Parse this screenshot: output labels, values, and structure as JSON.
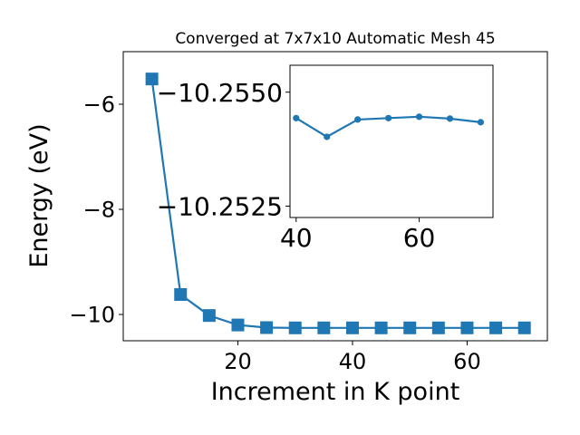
{
  "chart_data": [
    {
      "type": "line",
      "title": "Converged at 7x7x10 Automatic Mesh 45",
      "xlabel": "Increment in K point",
      "ylabel": "Energy (eV)",
      "xlim": [
        0,
        74
      ],
      "ylim": [
        -10.5,
        -5.0
      ],
      "xticks": [
        20,
        40,
        60
      ],
      "yticks": [
        -6,
        -8,
        -10
      ],
      "xtick_labels": [
        "20",
        "40",
        "60"
      ],
      "ytick_labels": [
        "−6",
        "−8",
        "−10"
      ],
      "marker": "square",
      "color": "#1f77b4",
      "series": [
        {
          "x": [
            5,
            10,
            15,
            20,
            25,
            30,
            35,
            40,
            45,
            50,
            55,
            60,
            65,
            70
          ],
          "y": [
            -5.52,
            -9.62,
            -10.02,
            -10.2,
            -10.25,
            -10.255,
            -10.255,
            -10.255,
            -10.255,
            -10.255,
            -10.255,
            -10.255,
            -10.255,
            -10.255
          ]
        }
      ]
    },
    {
      "type": "line",
      "title": "",
      "xlabel": "",
      "ylabel": "",
      "xlim": [
        39,
        72
      ],
      "ylim": [
        -10.25225,
        -10.25559
      ],
      "xticks": [
        40,
        60
      ],
      "yticks": [
        -10.255,
        -10.2525
      ],
      "xtick_labels": [
        "40",
        "60"
      ],
      "ytick_labels": [
        "−10.2550",
        "−10.2525"
      ],
      "marker": "circle",
      "color": "#1f77b4",
      "series": [
        {
          "x": [
            40,
            45,
            50,
            55,
            60,
            65,
            70
          ],
          "y": [
            -10.25443,
            -10.25402,
            -10.2544,
            -10.25443,
            -10.25446,
            -10.25442,
            -10.25434
          ]
        }
      ]
    }
  ]
}
